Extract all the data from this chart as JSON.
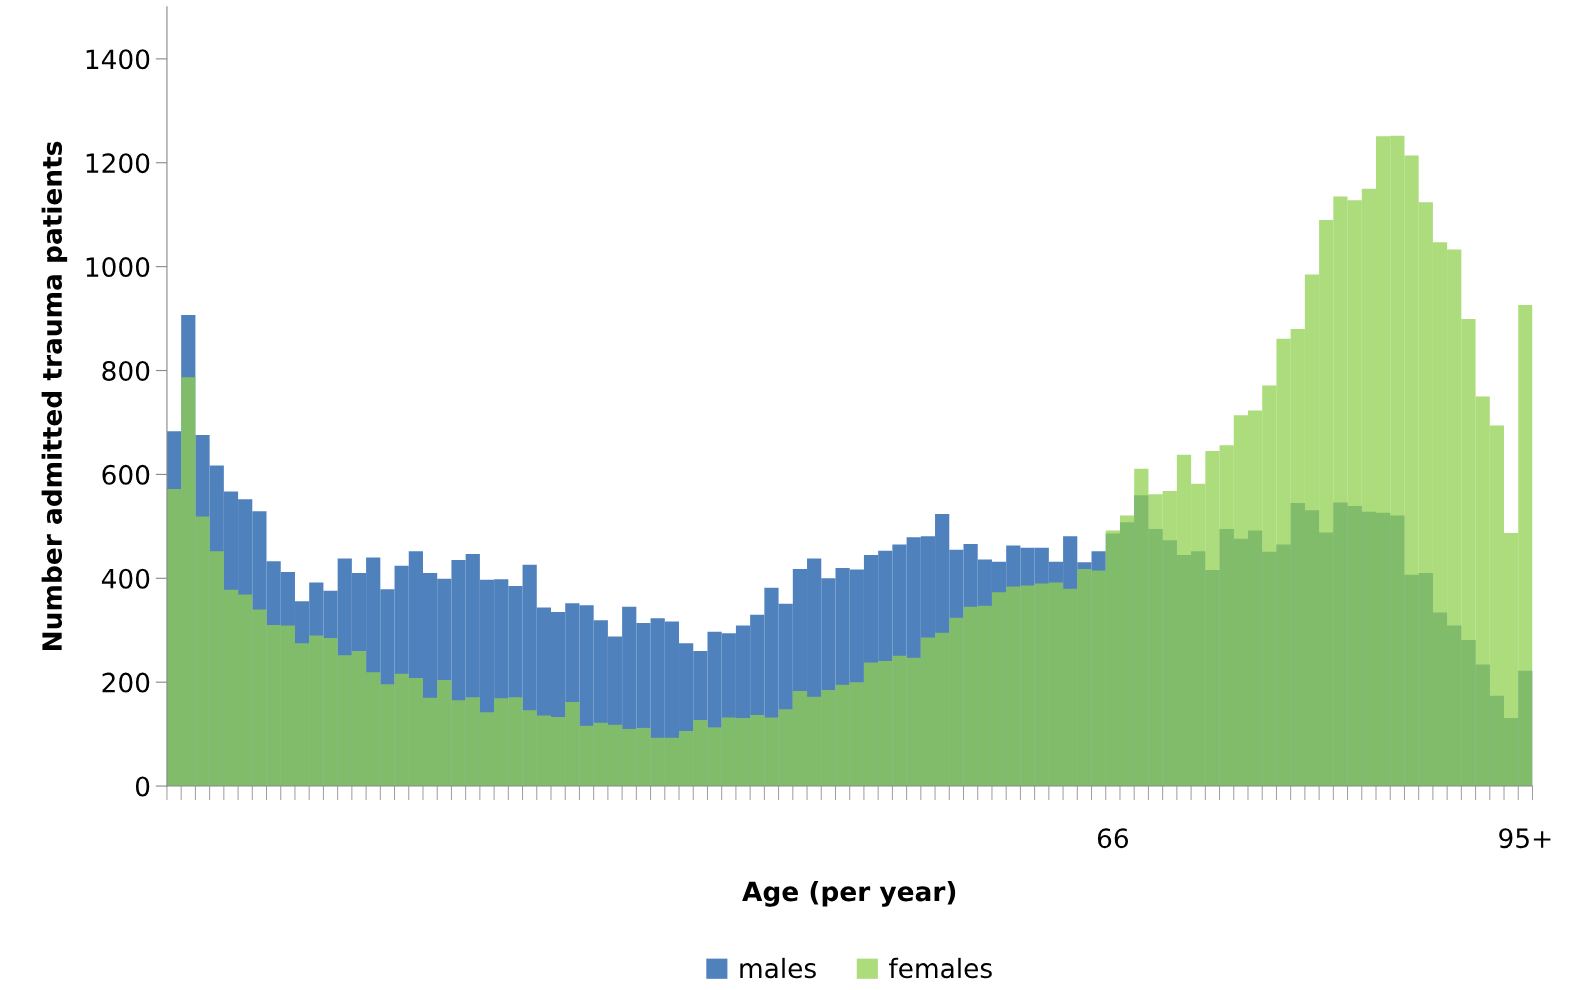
{
  "chart_data": {
    "type": "bar",
    "xlabel": "Age (per year)",
    "ylabel": "Number admitted trauma patients",
    "categories": [
      null,
      null,
      null,
      null,
      null,
      null,
      null,
      null,
      null,
      null,
      null,
      null,
      null,
      null,
      null,
      null,
      null,
      null,
      null,
      null,
      null,
      null,
      null,
      null,
      null,
      null,
      null,
      null,
      null,
      null,
      null,
      null,
      null,
      null,
      null,
      null,
      null,
      null,
      null,
      null,
      null,
      null,
      null,
      null,
      null,
      null,
      null,
      null,
      null,
      null,
      null,
      null,
      null,
      null,
      null,
      null,
      null,
      null,
      null,
      null,
      null,
      null,
      null,
      null,
      null,
      null,
      "66",
      null,
      null,
      null,
      null,
      null,
      null,
      null,
      null,
      null,
      null,
      null,
      null,
      null,
      null,
      null,
      null,
      null,
      null,
      null,
      null,
      null,
      null,
      null,
      null,
      null,
      null,
      null,
      null,
      "95+"
    ],
    "series": [
      {
        "name": "males",
        "color": "#4f81bd",
        "values": [
          683,
          907,
          676,
          617,
          567,
          552,
          529,
          433,
          412,
          356,
          392,
          376,
          438,
          410,
          440,
          379,
          424,
          452,
          410,
          399,
          435,
          447,
          397,
          398,
          385,
          426,
          344,
          335,
          352,
          348,
          319,
          288,
          345,
          314,
          323,
          317,
          275,
          260,
          297,
          294,
          309,
          330,
          382,
          351,
          418,
          438,
          400,
          420,
          417,
          445,
          453,
          465,
          479,
          481,
          524,
          455,
          466,
          436,
          432,
          463,
          459,
          459,
          432,
          481,
          431,
          452,
          486,
          508,
          560,
          495,
          473,
          445,
          452,
          416,
          495,
          476,
          492,
          451,
          465,
          545,
          531,
          488,
          546,
          539,
          528,
          526,
          521,
          407,
          410,
          334,
          309,
          281,
          234,
          174,
          131,
          222
        ]
      },
      {
        "name": "females",
        "color": "#92d050",
        "values": [
          572,
          787,
          519,
          452,
          378,
          369,
          340,
          310,
          309,
          275,
          290,
          285,
          252,
          260,
          219,
          196,
          216,
          208,
          170,
          204,
          165,
          171,
          142,
          169,
          171,
          146,
          136,
          133,
          162,
          116,
          122,
          118,
          110,
          112,
          93,
          93,
          106,
          127,
          113,
          132,
          131,
          137,
          132,
          148,
          183,
          172,
          185,
          195,
          200,
          238,
          241,
          251,
          247,
          286,
          295,
          324,
          345,
          347,
          373,
          384,
          386,
          390,
          392,
          380,
          418,
          415,
          492,
          521,
          611,
          562,
          568,
          638,
          582,
          645,
          656,
          714,
          723,
          771,
          861,
          880,
          985,
          1090,
          1135,
          1128,
          1150,
          1251,
          1252,
          1214,
          1124,
          1047,
          1033,
          899,
          750,
          694,
          487,
          926
        ]
      }
    ],
    "ylim": [
      0,
      1500
    ],
    "yticks": [
      0,
      200,
      400,
      600,
      800,
      1000,
      1200,
      1400
    ],
    "legend": "bottom"
  }
}
